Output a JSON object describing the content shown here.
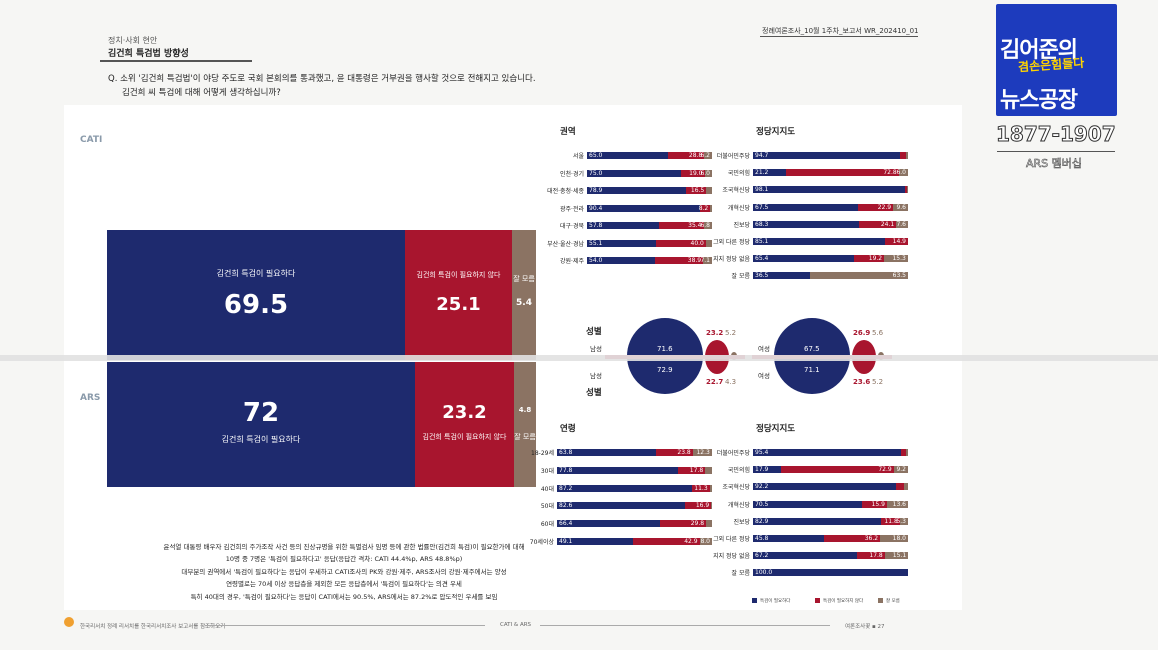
{
  "header": {
    "section": "정치·사회 현안",
    "title": "김건희 특검법 방향성",
    "doc_id": "정례여론조사_10월 1주차_보고서   WR_202410_01"
  },
  "question": {
    "line1": "Q. 소위 '김건희 특검법'이 야당 주도로 국회 본회의를 통과했고, 윤 대통령은 거부권을 행사할 것으로 전해지고 있습니다.",
    "line2": "김건희 씨 특검에 대해 어떻게 생각하십니까?"
  },
  "sections": {
    "cati": "CATI",
    "ars": "ARS"
  },
  "colors": {
    "navy": "#1e2a6e",
    "red": "#a8152e",
    "brown": "#8b7363"
  },
  "chart_data": [
    {
      "type": "bar",
      "name": "CATI",
      "categories": [
        "김건희 특검이 필요하다",
        "김건희 특검이 필요하지 않다",
        "잘 모름"
      ],
      "values": [
        69.5,
        25.1,
        5.4
      ],
      "labels": {
        "yes": "김건희 특검이\n필요하다",
        "no": "김건희 특검이\n필요하지 않다",
        "dk": "잘 모름"
      }
    },
    {
      "type": "bar",
      "name": "ARS",
      "categories": [
        "김건희 특검이 필요하다",
        "김건희 특검이 필요하지 않다",
        "잘 모름"
      ],
      "values": [
        72.0,
        23.2,
        4.8
      ]
    },
    {
      "type": "bar",
      "title": "권역",
      "categories": [
        "서울",
        "인천·경기",
        "대전·충청·세종",
        "광주·전라",
        "대구·경북",
        "부산·울산·경남",
        "강원·제주"
      ],
      "series": [
        {
          "values": [
            65.0,
            75.0,
            78.9,
            90.4,
            57.8,
            55.1,
            54.0
          ]
        },
        {
          "values": [
            28.8,
            19.0,
            16.5,
            8.2,
            35.4,
            40.0,
            38.9
          ]
        },
        {
          "values": [
            6.2,
            6.0,
            4.6,
            1.4,
            6.8,
            4.9,
            7.1
          ]
        }
      ],
      "shown": [
        [
          "65.0",
          "28.8",
          "6.2"
        ],
        [
          "75.0",
          "19.0",
          "6.0"
        ],
        [
          "78.9",
          "16.5",
          ""
        ],
        [
          "90.4",
          "8.2",
          ""
        ],
        [
          "57.8",
          "35.4",
          "6.8"
        ],
        [
          "55.1",
          "40.0",
          ""
        ],
        [
          "54.0",
          "38.9",
          "7.1"
        ]
      ]
    },
    {
      "type": "bar",
      "title": "정당지지도",
      "categories": [
        "더불어민주당",
        "국민의힘",
        "조국혁신당",
        "개혁신당",
        "진보당",
        "그외 다른 정당",
        "지지 정당 없음",
        "잘 모름"
      ],
      "series": [
        {
          "values": [
            94.7,
            21.2,
            98.1,
            67.5,
            68.3,
            85.1,
            65.4,
            36.5
          ]
        },
        {
          "values": [
            4.0,
            72.8,
            1.0,
            22.9,
            24.1,
            14.9,
            19.2,
            0
          ]
        },
        {
          "values": [
            1.3,
            6.0,
            0.9,
            9.6,
            7.6,
            0,
            15.3,
            63.5
          ]
        }
      ],
      "shown": [
        [
          "94.7",
          "",
          ""
        ],
        [
          "21.2",
          "72.8",
          "6.0"
        ],
        [
          "98.1",
          "",
          ""
        ],
        [
          "67.5",
          "22.9",
          "9.6"
        ],
        [
          "68.3",
          "24.1",
          "7.6"
        ],
        [
          "85.1",
          "14.9",
          ""
        ],
        [
          "65.4",
          "19.2",
          "15.3"
        ],
        [
          "36.5",
          "",
          "63.5"
        ]
      ]
    },
    {
      "type": "pie",
      "title": "성별",
      "rows": [
        {
          "label": "남성",
          "values": [
            71.6,
            23.2,
            5.2
          ]
        },
        {
          "label": "여성",
          "values": [
            67.5,
            26.9,
            5.6
          ]
        },
        {
          "label": "남성",
          "values": [
            72.9,
            22.7,
            4.3
          ]
        },
        {
          "label": "여성",
          "values": [
            71.1,
            23.6,
            5.2
          ]
        }
      ],
      "title2": "성별"
    },
    {
      "type": "bar",
      "title": "연령",
      "categories": [
        "18-29세",
        "30대",
        "40대",
        "50대",
        "60대",
        "70세이상"
      ],
      "series": [
        {
          "values": [
            63.8,
            77.8,
            87.2,
            82.6,
            66.4,
            49.1
          ]
        },
        {
          "values": [
            23.8,
            17.8,
            11.3,
            16.9,
            29.8,
            42.9
          ]
        },
        {
          "values": [
            12.3,
            4.4,
            1.5,
            0.5,
            3.8,
            8.0
          ]
        }
      ],
      "shown": [
        [
          "63.8",
          "23.8",
          "12.3"
        ],
        [
          "77.8",
          "17.8",
          ""
        ],
        [
          "87.2",
          "11.3",
          ""
        ],
        [
          "82.6",
          "16.9",
          ""
        ],
        [
          "66.4",
          "29.8",
          ""
        ],
        [
          "49.1",
          "42.9",
          "8.0"
        ]
      ]
    },
    {
      "type": "bar",
      "title": "정당지지도",
      "categories": [
        "더불어민주당",
        "국민의힘",
        "조국혁신당",
        "개혁신당",
        "진보당",
        "그외 다른 정당",
        "지지 정당 없음",
        "잘 모름"
      ],
      "series": [
        {
          "values": [
            95.4,
            17.9,
            92.2,
            70.5,
            82.9,
            45.8,
            67.2,
            100.0
          ]
        },
        {
          "values": [
            3.0,
            72.9,
            5.0,
            15.9,
            11.8,
            36.2,
            17.8,
            0
          ]
        },
        {
          "values": [
            1.6,
            9.2,
            2.8,
            13.6,
            5.3,
            18.0,
            15.1,
            0
          ]
        }
      ],
      "shown": [
        [
          "95.4",
          "",
          ""
        ],
        [
          "17.9",
          "72.9",
          "9.2"
        ],
        [
          "92.2",
          "",
          ""
        ],
        [
          "70.5",
          "15.9",
          "13.6"
        ],
        [
          "82.9",
          "11.8",
          "5.3"
        ],
        [
          "45.8",
          "36.2",
          "18.0"
        ],
        [
          "67.2",
          "17.8",
          "15.1"
        ],
        [
          "100.0",
          "",
          ""
        ]
      ]
    }
  ],
  "legend": [
    "특검이 필요하다",
    "특검이 필요하지 않다",
    "잘 모름"
  ],
  "summary": {
    "l1": "윤석열 대통령 배우자 김건희의 주가조작 사건 등의 진상규명을 위한 특별검사 임명 등에 관한 법률안(김건희 특검)이 필요한가에 대해",
    "l2": "10명 중 7명은 '특검이 필요하다고' 응답(응답간 격차: CATI 44.4%p, ARS 48.8%p)",
    "l3": "대부분의 권역에서 '특검이 필요하다'는 응답이 우세하고 CATI조사의 PK와 강원·제주, ARS조사의 강원·제주에서는 양성",
    "l4": "연령별로는 70세 이상 응답층을 제외한 모든 응답층에서 '특검이 필요하다'는 의견 우세",
    "l5": "특히 40대의 경우, '특검이 필요하다'는 응답이 CATI에서는 90.5%, ARS에서는 87.2%로 압도적인 우세를 보임"
  },
  "footer": {
    "left": "한국리서치 정례 리서치를 한국리서치조사 보고서를 참조하오기",
    "center": "CATI & ARS",
    "right": "여론조사꽃 ▪ 27"
  },
  "overlay": {
    "logo_line1": "김어준의",
    "logo_line2": "겸손은힘들다",
    "logo_line3": "뉴스공장",
    "phone": "1877-1907",
    "ars_label": "ARS 멤버십"
  }
}
